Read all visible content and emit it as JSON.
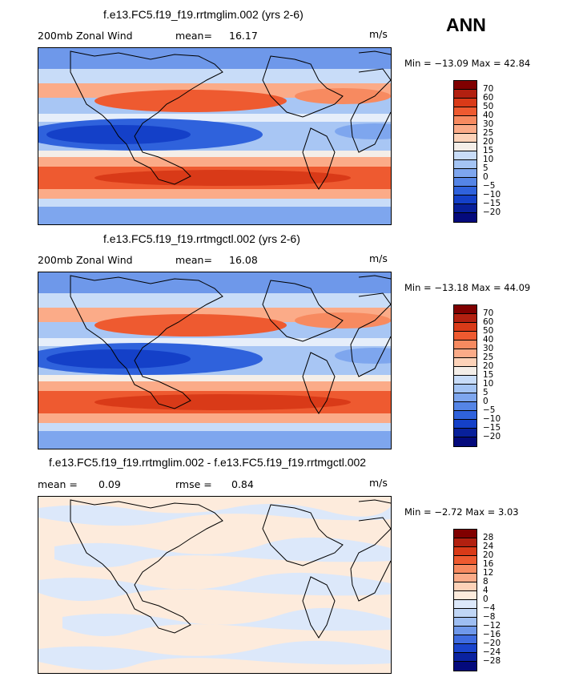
{
  "season": "ANN",
  "panels": [
    {
      "title": "f.e13.FC5.f19_f19.rrtmglim.002 (yrs 2-6)",
      "left_label": "200mb Zonal Wind",
      "stat1_label": "mean=",
      "stat1_value": "16.17",
      "stat2_label": "",
      "stat2_value": "",
      "units": "m/s",
      "minmax": "Min = −13.09 Max = 42.84",
      "levels": [
        "70",
        "60",
        "50",
        "40",
        "30",
        "25",
        "20",
        "15",
        "10",
        "5",
        "0",
        "−5",
        "−10",
        "−15",
        "−20"
      ],
      "colors": [
        "#800000",
        "#b22010",
        "#d93a18",
        "#ee5a30",
        "#f78a60",
        "#fbab88",
        "#fdd2b8",
        "#f4eee8",
        "#c8dcf8",
        "#a4c4f4",
        "#7ea6ee",
        "#5585e6",
        "#2f62dc",
        "#1440c8",
        "#08209a",
        "#040a7c"
      ]
    },
    {
      "title": "f.e13.FC5.f19_f19.rrtmgctl.002 (yrs 2-6)",
      "left_label": "200mb Zonal Wind",
      "stat1_label": "mean=",
      "stat1_value": "16.08",
      "stat2_label": "",
      "stat2_value": "",
      "units": "m/s",
      "minmax": "Min = −13.18 Max = 44.09",
      "levels": [
        "70",
        "60",
        "50",
        "40",
        "30",
        "25",
        "20",
        "15",
        "10",
        "5",
        "0",
        "−5",
        "−10",
        "−15",
        "−20"
      ],
      "colors": [
        "#800000",
        "#b22010",
        "#d93a18",
        "#ee5a30",
        "#f78a60",
        "#fbab88",
        "#fdd2b8",
        "#f4eee8",
        "#c8dcf8",
        "#a4c4f4",
        "#7ea6ee",
        "#5585e6",
        "#2f62dc",
        "#1440c8",
        "#08209a",
        "#040a7c"
      ]
    },
    {
      "title": "f.e13.FC5.f19_f19.rrtmglim.002 - f.e13.FC5.f19_f19.rrtmgctl.002",
      "left_label": "",
      "stat1_label": "mean =",
      "stat1_value": "0.09",
      "stat2_label": "rmse =",
      "stat2_value": "0.84",
      "units": "m/s",
      "minmax": "Min = −2.72 Max = 3.03",
      "levels": [
        "28",
        "24",
        "20",
        "16",
        "12",
        "8",
        "4",
        "0",
        "−4",
        "−8",
        "−12",
        "−16",
        "−20",
        "−24",
        "−28"
      ],
      "colors": [
        "#800000",
        "#b22010",
        "#d93a18",
        "#ee5a30",
        "#f78a60",
        "#fbab88",
        "#fdd2b8",
        "#fdebdc",
        "#dce8fa",
        "#c0d6f6",
        "#9ebef2",
        "#6f98ea",
        "#3f6ce0",
        "#1a44cc",
        "#0a22a0",
        "#040a7c"
      ]
    }
  ]
}
